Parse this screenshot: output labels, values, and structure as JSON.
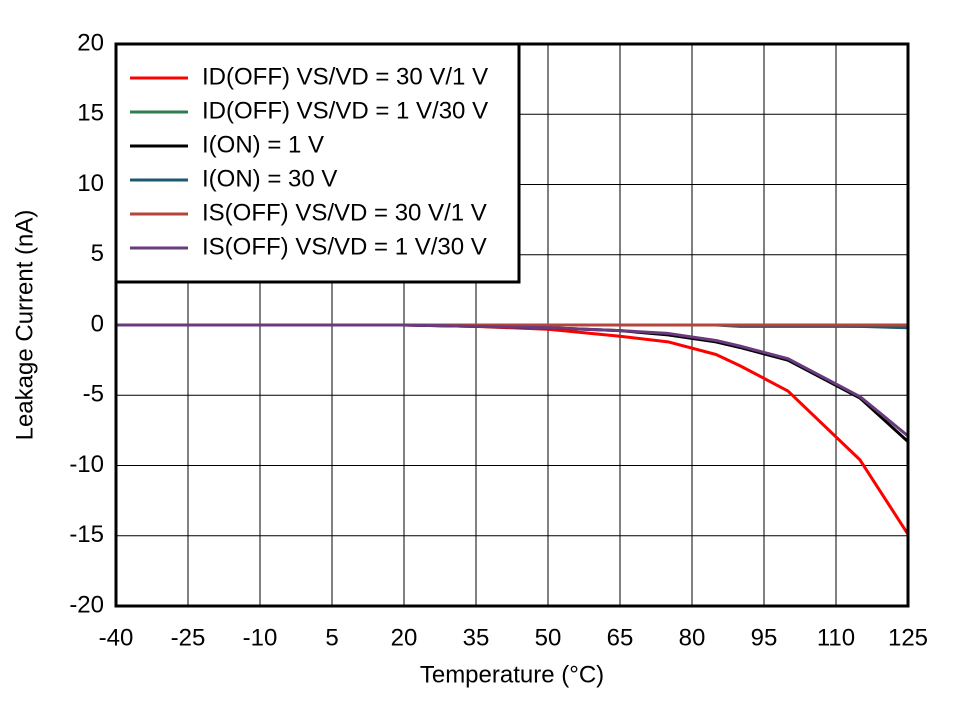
{
  "chart_data": {
    "type": "line",
    "xlabel": "Temperature (°C)",
    "ylabel": "Leakage Current (nA)",
    "x": [
      -40,
      -25,
      -10,
      5,
      20,
      35,
      50,
      65,
      75,
      85,
      90,
      100,
      115,
      125
    ],
    "series": [
      {
        "name": "ID(OFF) VS/VD = 30 V/1 V",
        "color": "#ff0000",
        "values": [
          0,
          0,
          0,
          0,
          0,
          -0.1,
          -0.3,
          -0.8,
          -1.2,
          -2.1,
          -2.9,
          -4.7,
          -9.6,
          -14.9
        ]
      },
      {
        "name": "ID(OFF) VS/VD = 1 V/30 V",
        "color": "#2e7d4f",
        "values": [
          0,
          0,
          0,
          0,
          0,
          0,
          0,
          0,
          0,
          0,
          0,
          0,
          -0.1,
          -0.1
        ]
      },
      {
        "name": "I(ON) = 1 V",
        "color": "#000000",
        "values": [
          0,
          0,
          0,
          0,
          0,
          -0.1,
          -0.2,
          -0.4,
          -0.7,
          -1.2,
          -1.6,
          -2.5,
          -5.2,
          -8.3
        ]
      },
      {
        "name": "I(ON) = 30 V",
        "color": "#1a5a6e",
        "values": [
          0,
          0,
          0,
          0,
          0,
          0,
          0,
          0,
          0,
          0,
          -0.1,
          -0.1,
          -0.1,
          -0.2
        ]
      },
      {
        "name": "IS(OFF) VS/VD = 30 V/1 V",
        "color": "#b5453a",
        "values": [
          0,
          0,
          0,
          0,
          0,
          0,
          0,
          0,
          0,
          0,
          0,
          0,
          0,
          0
        ]
      },
      {
        "name": "IS(OFF) VS/VD = 1 V/30 V",
        "color": "#6a3a7e",
        "values": [
          0,
          0,
          0,
          0,
          0,
          -0.1,
          -0.2,
          -0.4,
          -0.6,
          -1.1,
          -1.5,
          -2.4,
          -5.1,
          -7.9
        ]
      }
    ],
    "xlim": [
      -40,
      125
    ],
    "xticks": [
      -40,
      -25,
      -10,
      5,
      20,
      35,
      50,
      65,
      80,
      95,
      110,
      125
    ],
    "ylim": [
      -20,
      20
    ],
    "yticks": [
      -20,
      -15,
      -10,
      -5,
      0,
      5,
      10,
      15,
      20
    ],
    "grid": true,
    "legend": "upper left"
  }
}
